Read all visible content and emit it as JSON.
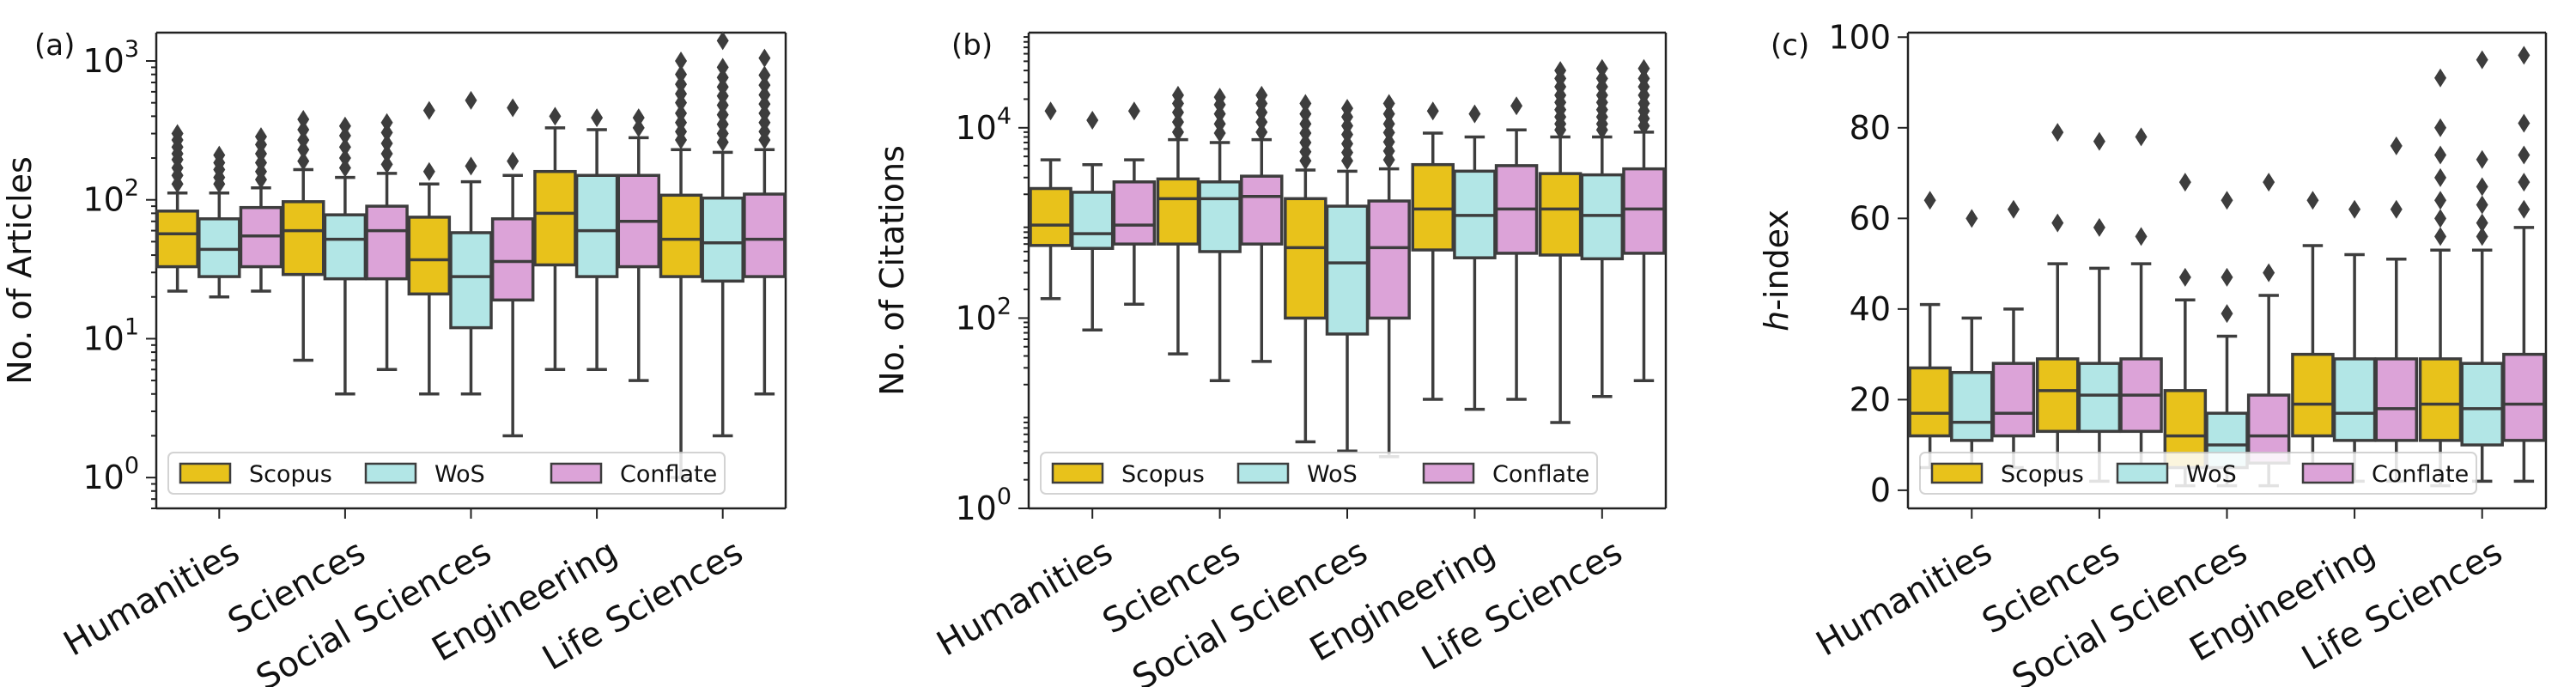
{
  "chart_data": [
    {
      "panel_label": "(a)",
      "type": "box",
      "scale": "log",
      "ylabel": "No. of Articles",
      "ylim": [
        0.6,
        1600
      ],
      "yticks": [
        {
          "value": 1,
          "label": "10",
          "exp": "0"
        },
        {
          "value": 10,
          "label": "10",
          "exp": "1"
        },
        {
          "value": 100,
          "label": "10",
          "exp": "2"
        },
        {
          "value": 1000,
          "label": "10",
          "exp": "3"
        }
      ],
      "categories": [
        "Humanities",
        "Sciences",
        "Social Sciences",
        "Engineering",
        "Life Sciences"
      ],
      "legend": [
        "Scopus",
        "WoS",
        "Conflate"
      ],
      "colors": [
        "#e8c21b",
        "#b2e6e6",
        "#dca3d8"
      ],
      "groups": [
        [
          {
            "wlo": 22,
            "q1": 33,
            "med": 57,
            "q3": 83,
            "whi": 112,
            "fliers": [
              130,
              150,
              170,
              195,
              215,
              240,
              270,
              300
            ]
          },
          {
            "wlo": 20,
            "q1": 28,
            "med": 44,
            "q3": 73,
            "whi": 112,
            "fliers": [
              130,
              145,
              165,
              185,
              210
            ]
          },
          {
            "wlo": 22,
            "q1": 33,
            "med": 55,
            "q3": 88,
            "whi": 122,
            "fliers": [
              140,
              160,
              185,
              215,
              250,
              285
            ]
          }
        ],
        [
          {
            "wlo": 7,
            "q1": 29,
            "med": 60,
            "q3": 97,
            "whi": 165,
            "fliers": [
              190,
              230,
              270,
              320,
              380
            ]
          },
          {
            "wlo": 4,
            "q1": 27,
            "med": 52,
            "q3": 78,
            "whi": 145,
            "fliers": [
              170,
              200,
              240,
              290,
              340
            ]
          },
          {
            "wlo": 6,
            "q1": 27,
            "med": 60,
            "q3": 90,
            "whi": 155,
            "fliers": [
              180,
              215,
              255,
              305,
              360
            ]
          }
        ],
        [
          {
            "wlo": 4,
            "q1": 21,
            "med": 37,
            "q3": 75,
            "whi": 130,
            "fliers": [
              160,
              440
            ]
          },
          {
            "wlo": 4,
            "q1": 12,
            "med": 28,
            "q3": 58,
            "whi": 135,
            "fliers": [
              175,
              520
            ]
          },
          {
            "wlo": 2,
            "q1": 19,
            "med": 36,
            "q3": 73,
            "whi": 150,
            "fliers": [
              190,
              460
            ]
          }
        ],
        [
          {
            "wlo": 6,
            "q1": 34,
            "med": 80,
            "q3": 160,
            "whi": 330,
            "fliers": [
              400
            ]
          },
          {
            "wlo": 6,
            "q1": 28,
            "med": 60,
            "q3": 150,
            "whi": 320,
            "fliers": [
              390
            ]
          },
          {
            "wlo": 5,
            "q1": 33,
            "med": 70,
            "q3": 150,
            "whi": 280,
            "fliers": [
              330,
              390
            ]
          }
        ],
        [
          {
            "wlo": 1,
            "q1": 28,
            "med": 52,
            "q3": 108,
            "whi": 230,
            "fliers": [
              270,
              310,
              360,
              420,
              500,
              580,
              680,
              800,
              1000
            ]
          },
          {
            "wlo": 2,
            "q1": 26,
            "med": 49,
            "q3": 103,
            "whi": 220,
            "fliers": [
              260,
              300,
              350,
              410,
              480,
              560,
              650,
              760,
              900,
              1400
            ]
          },
          {
            "wlo": 4,
            "q1": 28,
            "med": 52,
            "q3": 110,
            "whi": 230,
            "fliers": [
              270,
              310,
              360,
              420,
              490,
              570,
              670,
              790,
              1050
            ]
          }
        ]
      ]
    },
    {
      "panel_label": "(b)",
      "type": "box",
      "scale": "log",
      "ylabel": "No. of Citations",
      "ylim": [
        1,
        100000
      ],
      "yticks": [
        {
          "value": 1,
          "label": "10",
          "exp": "0"
        },
        {
          "value": 100,
          "label": "10",
          "exp": "2"
        },
        {
          "value": 10000,
          "label": "10",
          "exp": "4"
        }
      ],
      "categories": [
        "Humanities",
        "Sciences",
        "Social Sciences",
        "Engineering",
        "Life Sciences"
      ],
      "legend": [
        "Scopus",
        "WoS",
        "Conflate"
      ],
      "colors": [
        "#e8c21b",
        "#b2e6e6",
        "#dca3d8"
      ],
      "groups": [
        [
          {
            "wlo": 160,
            "q1": 580,
            "med": 950,
            "q3": 2300,
            "whi": 4600,
            "fliers": [
              15000
            ]
          },
          {
            "wlo": 75,
            "q1": 540,
            "med": 770,
            "q3": 2100,
            "whi": 4100,
            "fliers": [
              12000
            ]
          },
          {
            "wlo": 140,
            "q1": 600,
            "med": 950,
            "q3": 2700,
            "whi": 4600,
            "fliers": [
              15000
            ]
          }
        ],
        [
          {
            "wlo": 42,
            "q1": 600,
            "med": 1800,
            "q3": 2900,
            "whi": 7500,
            "fliers": [
              9000,
              11500,
              14500,
              18000,
              22000
            ]
          },
          {
            "wlo": 22,
            "q1": 500,
            "med": 1800,
            "q3": 2700,
            "whi": 7000,
            "fliers": [
              8800,
              11000,
              14000,
              17500,
              21000
            ]
          },
          {
            "wlo": 35,
            "q1": 600,
            "med": 1900,
            "q3": 3100,
            "whi": 7500,
            "fliers": [
              9000,
              11500,
              14500,
              18000,
              22000
            ]
          }
        ],
        [
          {
            "wlo": 5,
            "q1": 100,
            "med": 550,
            "q3": 1800,
            "whi": 3600,
            "fliers": [
              4500,
              5600,
              7000,
              8800,
              11000,
              14000,
              18000
            ]
          },
          {
            "wlo": 4,
            "q1": 68,
            "med": 380,
            "q3": 1500,
            "whi": 3500,
            "fliers": [
              4500,
              5500,
              6800,
              8500,
              10500,
              13000,
              16000
            ]
          },
          {
            "wlo": 3.5,
            "q1": 100,
            "med": 550,
            "q3": 1700,
            "whi": 3700,
            "fliers": [
              4600,
              5700,
              7100,
              8900,
              11000,
              14000,
              18000
            ]
          }
        ],
        [
          {
            "wlo": 14,
            "q1": 520,
            "med": 1400,
            "q3": 4100,
            "whi": 8800,
            "fliers": [
              15000
            ]
          },
          {
            "wlo": 11,
            "q1": 430,
            "med": 1200,
            "q3": 3500,
            "whi": 8000,
            "fliers": [
              14000
            ]
          },
          {
            "wlo": 14,
            "q1": 480,
            "med": 1400,
            "q3": 4000,
            "whi": 9500,
            "fliers": [
              17000
            ]
          }
        ],
        [
          {
            "wlo": 8,
            "q1": 460,
            "med": 1400,
            "q3": 3300,
            "whi": 8000,
            "fliers": [
              9500,
              11000,
              13000,
              15500,
              18500,
              22000,
              27000,
              33000,
              40000
            ]
          },
          {
            "wlo": 15,
            "q1": 420,
            "med": 1200,
            "q3": 3200,
            "whi": 8000,
            "fliers": [
              9500,
              11000,
              13000,
              15500,
              18500,
              22000,
              27000,
              33000,
              42000
            ]
          },
          {
            "wlo": 22,
            "q1": 480,
            "med": 1400,
            "q3": 3700,
            "whi": 9000,
            "fliers": [
              10500,
              12500,
              15000,
              18000,
              22000,
              27000,
              33000,
              42000
            ]
          }
        ]
      ]
    },
    {
      "panel_label": "(c)",
      "type": "box",
      "scale": "linear",
      "ylabel_prefix": "h",
      "ylabel": "-index",
      "ylim": [
        -4,
        101
      ],
      "yticks": [
        {
          "value": 0,
          "label": "0"
        },
        {
          "value": 20,
          "label": "20"
        },
        {
          "value": 40,
          "label": "40"
        },
        {
          "value": 60,
          "label": "60"
        },
        {
          "value": 80,
          "label": "80"
        },
        {
          "value": 100,
          "label": "100"
        }
      ],
      "categories": [
        "Humanities",
        "Sciences",
        "Social Sciences",
        "Engineering",
        "Life Sciences"
      ],
      "legend": [
        "Scopus",
        "WoS",
        "Conflate"
      ],
      "colors": [
        "#e8c21b",
        "#b2e6e6",
        "#dca3d8"
      ],
      "groups": [
        [
          {
            "wlo": 5,
            "q1": 12,
            "med": 17,
            "q3": 27,
            "whi": 41,
            "fliers": [
              64
            ]
          },
          {
            "wlo": 4,
            "q1": 11,
            "med": 15,
            "q3": 26,
            "whi": 38,
            "fliers": [
              60
            ]
          },
          {
            "wlo": 5,
            "q1": 12,
            "med": 17,
            "q3": 28,
            "whi": 40,
            "fliers": [
              62
            ]
          }
        ],
        [
          {
            "wlo": 4,
            "q1": 13,
            "med": 22,
            "q3": 29,
            "whi": 50,
            "fliers": [
              59,
              79
            ]
          },
          {
            "wlo": 2,
            "q1": 13,
            "med": 21,
            "q3": 28,
            "whi": 49,
            "fliers": [
              58,
              77
            ]
          },
          {
            "wlo": 4,
            "q1": 13,
            "med": 21,
            "q3": 29,
            "whi": 50,
            "fliers": [
              56,
              78
            ]
          }
        ],
        [
          {
            "wlo": 1,
            "q1": 5,
            "med": 12,
            "q3": 22,
            "whi": 42,
            "fliers": [
              47,
              68
            ]
          },
          {
            "wlo": 1,
            "q1": 5,
            "med": 10,
            "q3": 17,
            "whi": 34,
            "fliers": [
              39,
              47,
              64
            ]
          },
          {
            "wlo": 1,
            "q1": 6,
            "med": 12,
            "q3": 21,
            "whi": 43,
            "fliers": [
              48,
              68
            ]
          }
        ],
        [
          {
            "wlo": 2,
            "q1": 12,
            "med": 19,
            "q3": 30,
            "whi": 54,
            "fliers": [
              64
            ]
          },
          {
            "wlo": 2,
            "q1": 11,
            "med": 17,
            "q3": 29,
            "whi": 52,
            "fliers": [
              62
            ]
          },
          {
            "wlo": 2,
            "q1": 11,
            "med": 18,
            "q3": 29,
            "whi": 51,
            "fliers": [
              62,
              76
            ]
          }
        ],
        [
          {
            "wlo": 1,
            "q1": 11,
            "med": 19,
            "q3": 29,
            "whi": 53,
            "fliers": [
              56,
              60,
              64,
              69,
              74,
              80,
              91
            ]
          },
          {
            "wlo": 2,
            "q1": 10,
            "med": 18,
            "q3": 28,
            "whi": 53,
            "fliers": [
              56,
              59,
              63,
              67,
              73,
              95
            ]
          },
          {
            "wlo": 2,
            "q1": 11,
            "med": 19,
            "q3": 30,
            "whi": 58,
            "fliers": [
              62,
              68,
              74,
              81,
              96
            ]
          }
        ]
      ]
    }
  ]
}
